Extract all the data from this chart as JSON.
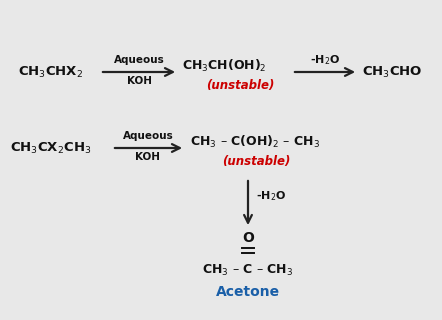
{
  "bg_color": "#e8e8e8",
  "content_bg": "#ebebeb",
  "r1": {
    "reactant": "CH$_3$CHX$_2$",
    "arrow1_top": "Aqueous",
    "arrow1_bot": "KOH",
    "intermediate": "CH$_3$CH(OH)$_2$",
    "unstable": "(unstable)",
    "arrow2_label": "-H$_2$O",
    "product": "CH$_3$CHO"
  },
  "r2": {
    "reactant": "CH$_3$CX$_2$CH$_3$",
    "arrow1_top": "Aqueous",
    "arrow1_bot": "KOH",
    "intermediate": "CH$_3$ – C(OH)$_2$ – CH$_3$",
    "unstable": "(unstable)",
    "arrow2_label": "-H$_2$O",
    "O_label": "O",
    "double_bond": "||",
    "product": "CH$_3$ – C – CH$_3$",
    "acetone_label": "Acetone"
  },
  "arrow_color": "#222222",
  "text_color": "#111111",
  "red_color": "#cc0000",
  "blue_color": "#1a5fa8"
}
